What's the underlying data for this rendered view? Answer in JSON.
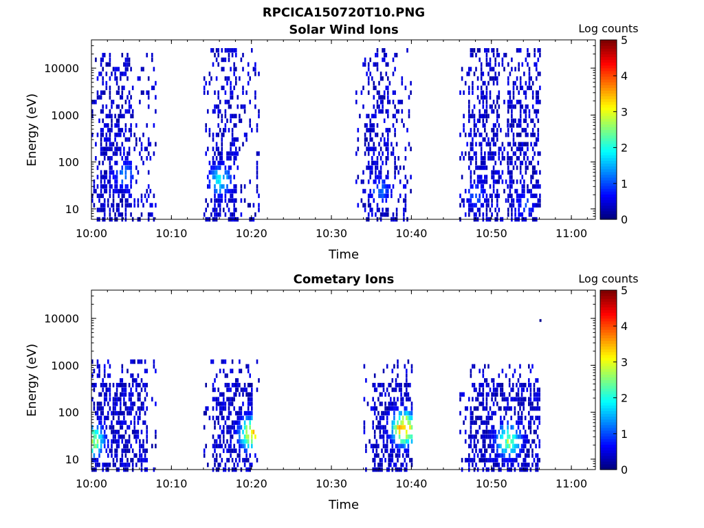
{
  "figure_title": "RPCICA150720T10.PNG",
  "chart_data": [
    {
      "type": "heatmap",
      "title": "Solar Wind Ions",
      "xlabel": "Time",
      "ylabel": "Energy (eV)",
      "xlim": [
        "10:00",
        "11:03"
      ],
      "ylim": [
        6,
        40000
      ],
      "yscale": "log",
      "x_ticks": [
        "10:00",
        "10:10",
        "10:20",
        "10:30",
        "10:40",
        "10:50",
        "11:00"
      ],
      "y_ticks": [
        "10",
        "100",
        "1000",
        "10000"
      ],
      "colorbar": {
        "label": "Log counts",
        "range": [
          0,
          5
        ],
        "ticks": [
          "0",
          "1",
          "2",
          "3",
          "4",
          "5"
        ],
        "colormap": "jet"
      },
      "bursts": [
        {
          "t_start": "10:00",
          "t_end": "10:08",
          "e_min": 6,
          "e_max": 22000,
          "core_t": [
            "10:01",
            "10:05"
          ],
          "hotspot": {
            "t": "10:04",
            "e": 55,
            "log_counts": 1.3
          }
        },
        {
          "t_start": "10:14",
          "t_end": "10:21",
          "e_min": 6,
          "e_max": 30000,
          "core_t": [
            "10:15",
            "10:18"
          ],
          "hotspot": {
            "t": "10:16",
            "e": 40,
            "log_counts": 1.9
          }
        },
        {
          "t_start": "10:33",
          "t_end": "10:40",
          "e_min": 6,
          "e_max": 27000,
          "core_t": [
            "10:34",
            "10:37"
          ],
          "hotspot": {
            "t": "10:36",
            "e": 25,
            "log_counts": 1.2
          }
        },
        {
          "t_start": "10:46",
          "t_end": "10:52",
          "e_min": 6,
          "e_max": 30000,
          "core_t": [
            "10:47",
            "10:51"
          ],
          "hotspot": {
            "t": "10:48",
            "e": 20,
            "log_counts": 1.1
          }
        },
        {
          "t_start": "10:52",
          "t_end": "10:56",
          "e_min": 6,
          "e_max": 25000,
          "core_t": [
            "10:52",
            "10:56"
          ],
          "hotspot": {
            "t": "10:54",
            "e": 12,
            "log_counts": 1.0
          }
        }
      ]
    },
    {
      "type": "heatmap",
      "title": "Cometary Ions",
      "xlabel": "Time",
      "ylabel": "Energy (eV)",
      "xlim": [
        "10:00",
        "11:03"
      ],
      "ylim": [
        6,
        40000
      ],
      "yscale": "log",
      "x_ticks": [
        "10:00",
        "10:10",
        "10:20",
        "10:30",
        "10:40",
        "10:50",
        "11:00"
      ],
      "y_ticks": [
        "10",
        "100",
        "1000",
        "10000"
      ],
      "colorbar": {
        "label": "Log counts",
        "range": [
          0,
          5
        ],
        "ticks": [
          "0",
          "1",
          "2",
          "3",
          "4",
          "5"
        ],
        "colormap": "jet"
      },
      "bursts": [
        {
          "t_start": "10:00",
          "t_end": "10:08",
          "e_min": 6,
          "e_max": 1200,
          "core_t": [
            "10:00",
            "10:07"
          ],
          "hotspot": {
            "t": "10:00",
            "e": 25,
            "log_counts": 3.0
          }
        },
        {
          "t_start": "10:14",
          "t_end": "10:21",
          "e_min": 6,
          "e_max": 1300,
          "core_t": [
            "10:15",
            "10:20"
          ],
          "hotspot": {
            "t": "10:20",
            "e": 35,
            "log_counts": 3.6
          }
        },
        {
          "t_start": "10:34",
          "t_end": "10:40",
          "e_min": 6,
          "e_max": 1300,
          "core_t": [
            "10:35",
            "10:40"
          ],
          "hotspot": {
            "t": "10:39",
            "e": 45,
            "log_counts": 4.2
          }
        },
        {
          "t_start": "10:46",
          "t_end": "10:56",
          "e_min": 6,
          "e_max": 1100,
          "core_t": [
            "10:47",
            "10:56"
          ],
          "hotspot": {
            "t": "10:52",
            "e": 25,
            "log_counts": 2.8
          }
        }
      ],
      "isolated_points": [
        {
          "t": "10:56",
          "e": 9000
        }
      ]
    }
  ]
}
